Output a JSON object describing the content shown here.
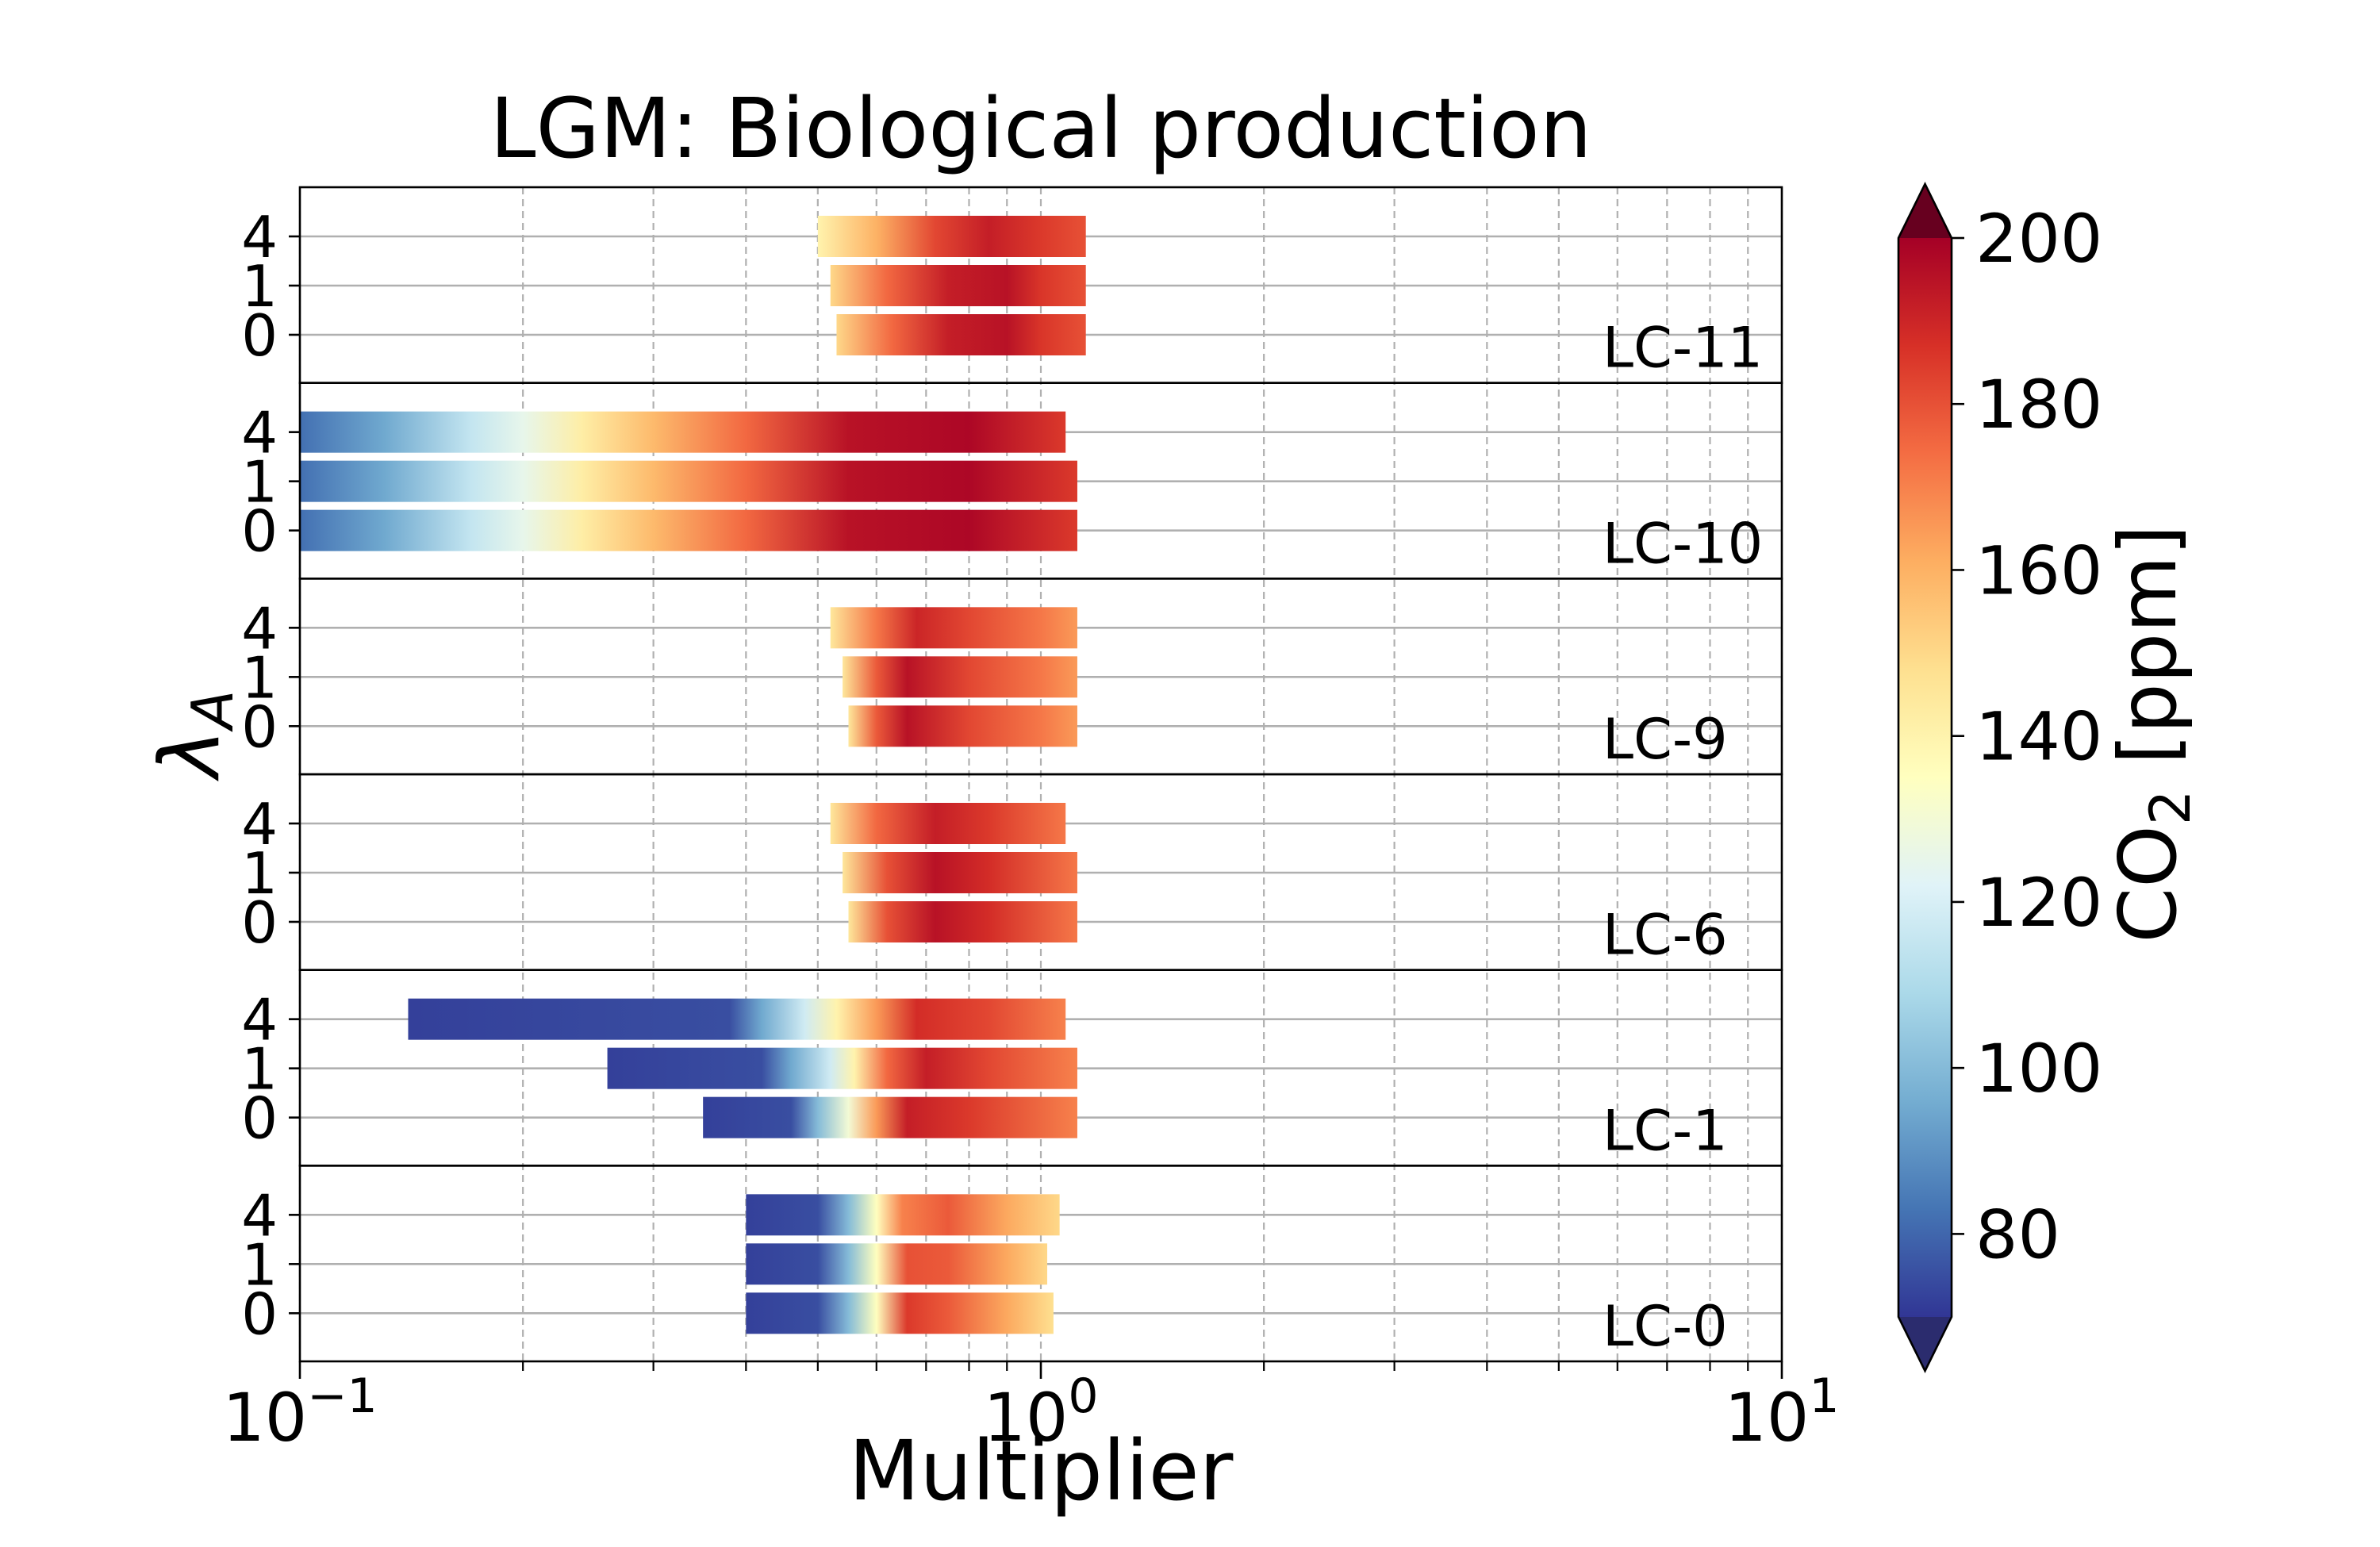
{
  "chart_data": {
    "type": "heatmap",
    "title": "LGM: Biological production",
    "xlabel": "Multiplier",
    "ylabel": "λ",
    "ylabel_sub": "A",
    "xscale": "log",
    "xlim": [
      0.1,
      10
    ],
    "x_ticks": [
      {
        "value": 0.1,
        "base": "10",
        "exp": "−1"
      },
      {
        "value": 1,
        "base": "10",
        "exp": "0"
      },
      {
        "value": 10,
        "base": "10",
        "exp": "1"
      }
    ],
    "y_tick_labels": [
      "4",
      "1",
      "0"
    ],
    "grid": true,
    "colorbar": {
      "label_main": "CO",
      "label_sub": "2",
      "label_unit": " [ppm]",
      "range": [
        70,
        200
      ],
      "extend": "both",
      "ticks": [
        80,
        100,
        120,
        140,
        160,
        180,
        200
      ],
      "tick_labels": [
        "80",
        "100",
        "120",
        "140",
        "160",
        "180",
        "200"
      ],
      "colormap": "RdYlBu_r"
    },
    "panels": [
      {
        "label": "LC-11",
        "rows": [
          {
            "lambda": "4",
            "xmin": 0.5,
            "xmax": 1.15,
            "stops": [
              [
                0.5,
                140
              ],
              [
                0.6,
                160
              ],
              [
                0.72,
                182
              ],
              [
                0.85,
                192
              ],
              [
                1.0,
                185
              ],
              [
                1.15,
                180
              ]
            ]
          },
          {
            "lambda": "1",
            "xmin": 0.52,
            "xmax": 1.15,
            "stops": [
              [
                0.52,
                150
              ],
              [
                0.62,
                175
              ],
              [
                0.75,
                192
              ],
              [
                0.9,
                195
              ],
              [
                1.0,
                186
              ],
              [
                1.15,
                180
              ]
            ]
          },
          {
            "lambda": "0",
            "xmin": 0.53,
            "xmax": 1.15,
            "stops": [
              [
                0.53,
                150
              ],
              [
                0.63,
                175
              ],
              [
                0.75,
                192
              ],
              [
                0.9,
                195
              ],
              [
                1.0,
                186
              ],
              [
                1.15,
                180
              ]
            ]
          }
        ]
      },
      {
        "label": "LC-10",
        "rows": [
          {
            "lambda": "4",
            "xmin": 0.1,
            "xmax": 1.08,
            "stops": [
              [
                0.1,
                82
              ],
              [
                0.13,
                95
              ],
              [
                0.17,
                115
              ],
              [
                0.2,
                125
              ],
              [
                0.24,
                142
              ],
              [
                0.3,
                158
              ],
              [
                0.4,
                175
              ],
              [
                0.55,
                195
              ],
              [
                0.8,
                198
              ],
              [
                1.08,
                185
              ]
            ]
          },
          {
            "lambda": "1",
            "xmin": 0.1,
            "xmax": 1.12,
            "stops": [
              [
                0.1,
                82
              ],
              [
                0.13,
                95
              ],
              [
                0.17,
                115
              ],
              [
                0.2,
                125
              ],
              [
                0.24,
                142
              ],
              [
                0.3,
                158
              ],
              [
                0.4,
                175
              ],
              [
                0.55,
                195
              ],
              [
                0.8,
                198
              ],
              [
                1.12,
                185
              ]
            ]
          },
          {
            "lambda": "0",
            "xmin": 0.1,
            "xmax": 1.12,
            "stops": [
              [
                0.1,
                82
              ],
              [
                0.13,
                95
              ],
              [
                0.17,
                115
              ],
              [
                0.2,
                125
              ],
              [
                0.24,
                142
              ],
              [
                0.3,
                158
              ],
              [
                0.4,
                175
              ],
              [
                0.55,
                195
              ],
              [
                0.8,
                198
              ],
              [
                1.12,
                185
              ]
            ]
          }
        ]
      },
      {
        "label": "LC-9",
        "rows": [
          {
            "lambda": "4",
            "xmin": 0.52,
            "xmax": 1.12,
            "stops": [
              [
                0.52,
                145
              ],
              [
                0.6,
                172
              ],
              [
                0.68,
                190
              ],
              [
                0.8,
                182
              ],
              [
                1.0,
                172
              ],
              [
                1.12,
                165
              ]
            ]
          },
          {
            "lambda": "1",
            "xmin": 0.54,
            "xmax": 1.12,
            "stops": [
              [
                0.54,
                145
              ],
              [
                0.6,
                178
              ],
              [
                0.66,
                195
              ],
              [
                0.8,
                182
              ],
              [
                1.0,
                172
              ],
              [
                1.12,
                165
              ]
            ]
          },
          {
            "lambda": "0",
            "xmin": 0.55,
            "xmax": 1.12,
            "stops": [
              [
                0.55,
                145
              ],
              [
                0.6,
                178
              ],
              [
                0.66,
                195
              ],
              [
                0.8,
                182
              ],
              [
                1.0,
                172
              ],
              [
                1.12,
                165
              ]
            ]
          }
        ]
      },
      {
        "label": "LC-6",
        "rows": [
          {
            "lambda": "4",
            "xmin": 0.52,
            "xmax": 1.08,
            "stops": [
              [
                0.52,
                145
              ],
              [
                0.6,
                175
              ],
              [
                0.72,
                192
              ],
              [
                0.85,
                185
              ],
              [
                1.08,
                172
              ]
            ]
          },
          {
            "lambda": "1",
            "xmin": 0.54,
            "xmax": 1.12,
            "stops": [
              [
                0.54,
                145
              ],
              [
                0.62,
                180
              ],
              [
                0.72,
                195
              ],
              [
                0.85,
                188
              ],
              [
                1.12,
                172
              ]
            ]
          },
          {
            "lambda": "0",
            "xmin": 0.55,
            "xmax": 1.12,
            "stops": [
              [
                0.55,
                145
              ],
              [
                0.62,
                180
              ],
              [
                0.72,
                195
              ],
              [
                0.85,
                188
              ],
              [
                1.12,
                172
              ]
            ]
          }
        ]
      },
      {
        "label": "LC-1",
        "rows": [
          {
            "lambda": "4",
            "xmin": 0.14,
            "xmax": 1.08,
            "stops": [
              [
                0.14,
                72
              ],
              [
                0.38,
                75
              ],
              [
                0.42,
                95
              ],
              [
                0.48,
                118
              ],
              [
                0.53,
                140
              ],
              [
                0.6,
                165
              ],
              [
                0.68,
                188
              ],
              [
                0.85,
                182
              ],
              [
                1.08,
                170
              ]
            ]
          },
          {
            "lambda": "1",
            "xmin": 0.26,
            "xmax": 1.12,
            "stops": [
              [
                0.26,
                72
              ],
              [
                0.42,
                75
              ],
              [
                0.46,
                95
              ],
              [
                0.52,
                118
              ],
              [
                0.56,
                140
              ],
              [
                0.62,
                175
              ],
              [
                0.7,
                192
              ],
              [
                0.85,
                182
              ],
              [
                1.12,
                170
              ]
            ]
          },
          {
            "lambda": "0",
            "xmin": 0.35,
            "xmax": 1.12,
            "stops": [
              [
                0.35,
                72
              ],
              [
                0.46,
                75
              ],
              [
                0.5,
                100
              ],
              [
                0.55,
                130
              ],
              [
                0.6,
                165
              ],
              [
                0.66,
                192
              ],
              [
                0.8,
                185
              ],
              [
                1.12,
                170
              ]
            ]
          }
        ]
      },
      {
        "label": "LC-0",
        "rows": [
          {
            "lambda": "4",
            "xmin": 0.4,
            "xmax": 1.06,
            "stops": [
              [
                0.4,
                72
              ],
              [
                0.5,
                75
              ],
              [
                0.55,
                100
              ],
              [
                0.6,
                135
              ],
              [
                0.65,
                170
              ],
              [
                0.75,
                178
              ],
              [
                0.9,
                162
              ],
              [
                1.06,
                150
              ]
            ]
          },
          {
            "lambda": "1",
            "xmin": 0.4,
            "xmax": 1.02,
            "stops": [
              [
                0.4,
                72
              ],
              [
                0.5,
                75
              ],
              [
                0.55,
                100
              ],
              [
                0.6,
                135
              ],
              [
                0.66,
                180
              ],
              [
                0.75,
                178
              ],
              [
                0.9,
                162
              ],
              [
                1.02,
                150
              ]
            ]
          },
          {
            "lambda": "0",
            "xmin": 0.4,
            "xmax": 1.04,
            "stops": [
              [
                0.4,
                72
              ],
              [
                0.5,
                75
              ],
              [
                0.55,
                100
              ],
              [
                0.6,
                135
              ],
              [
                0.66,
                185
              ],
              [
                0.75,
                178
              ],
              [
                0.9,
                162
              ],
              [
                1.04,
                148
              ]
            ]
          }
        ]
      }
    ]
  }
}
